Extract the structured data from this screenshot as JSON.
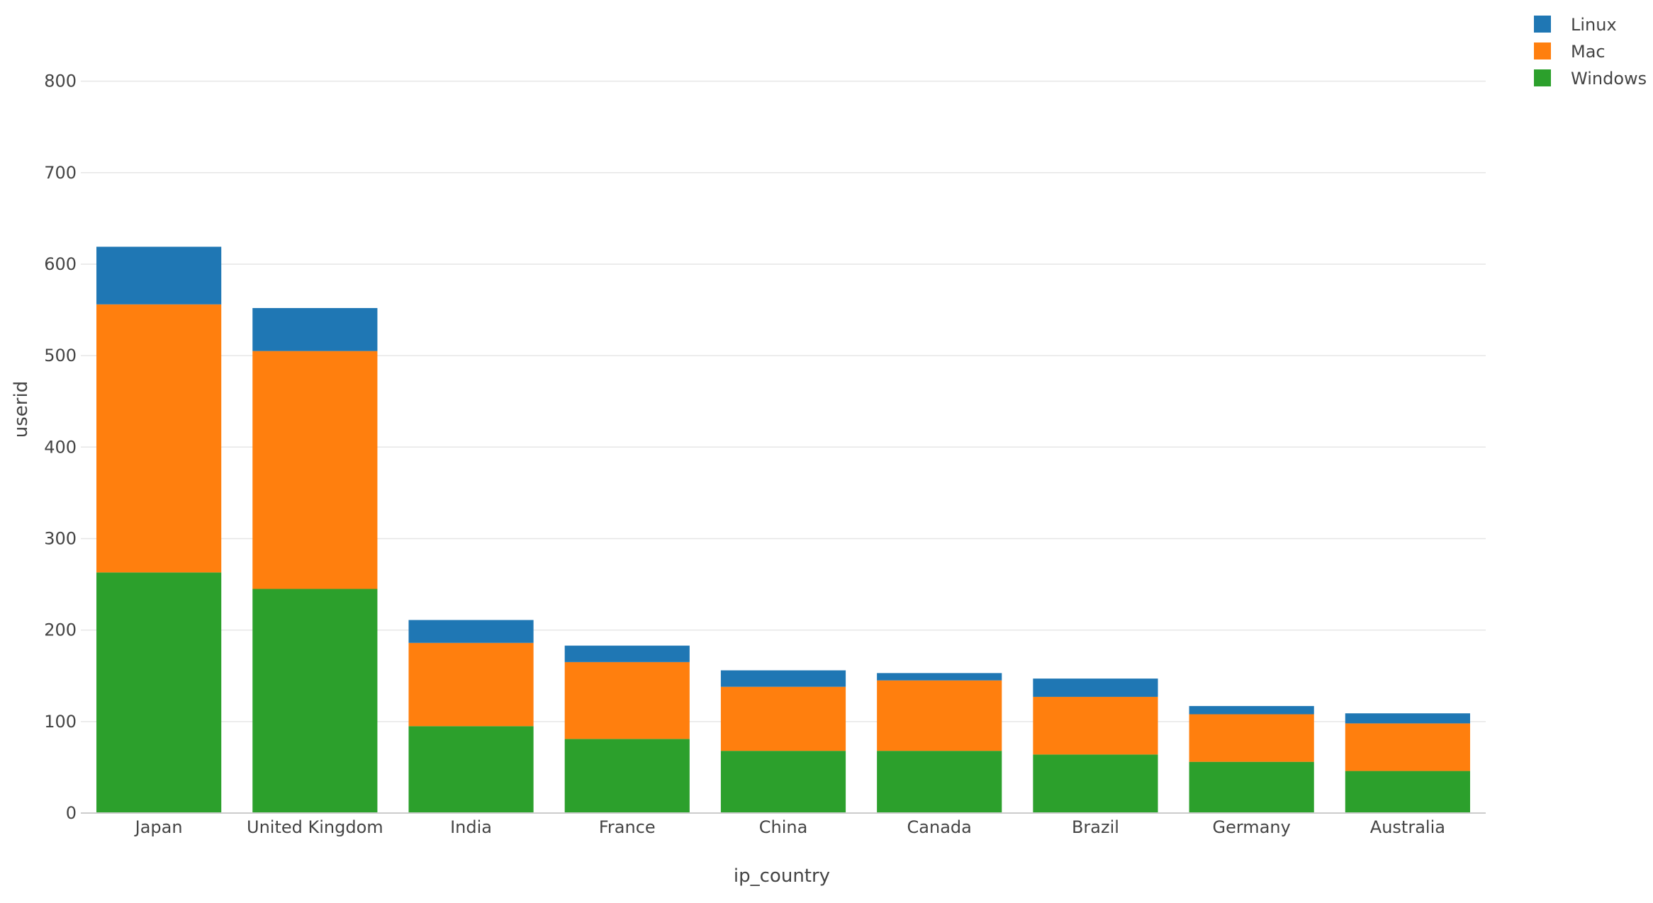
{
  "chart_data": {
    "type": "bar",
    "barmode": "stack",
    "title": "",
    "xlabel": "ip_country",
    "ylabel": "userid",
    "ylim": [
      0,
      850
    ],
    "yticks": [
      0,
      100,
      200,
      300,
      400,
      500,
      600,
      700,
      800
    ],
    "grid": true,
    "legend_position": "top-right",
    "categories": [
      "Japan",
      "United Kingdom",
      "India",
      "France",
      "China",
      "Canada",
      "Brazil",
      "Germany",
      "Australia"
    ],
    "series": [
      {
        "name": "Windows",
        "color": "#2ca02c",
        "values": [
          263,
          245,
          95,
          81,
          68,
          68,
          64,
          56,
          46
        ]
      },
      {
        "name": "Mac",
        "color": "#ff7f0e",
        "values": [
          293,
          260,
          91,
          84,
          70,
          77,
          63,
          52,
          52
        ]
      },
      {
        "name": "Linux",
        "color": "#1f77b4",
        "values": [
          63,
          47,
          25,
          18,
          18,
          8,
          20,
          9,
          11
        ]
      }
    ],
    "legend_order": [
      "Linux",
      "Mac",
      "Windows"
    ]
  }
}
